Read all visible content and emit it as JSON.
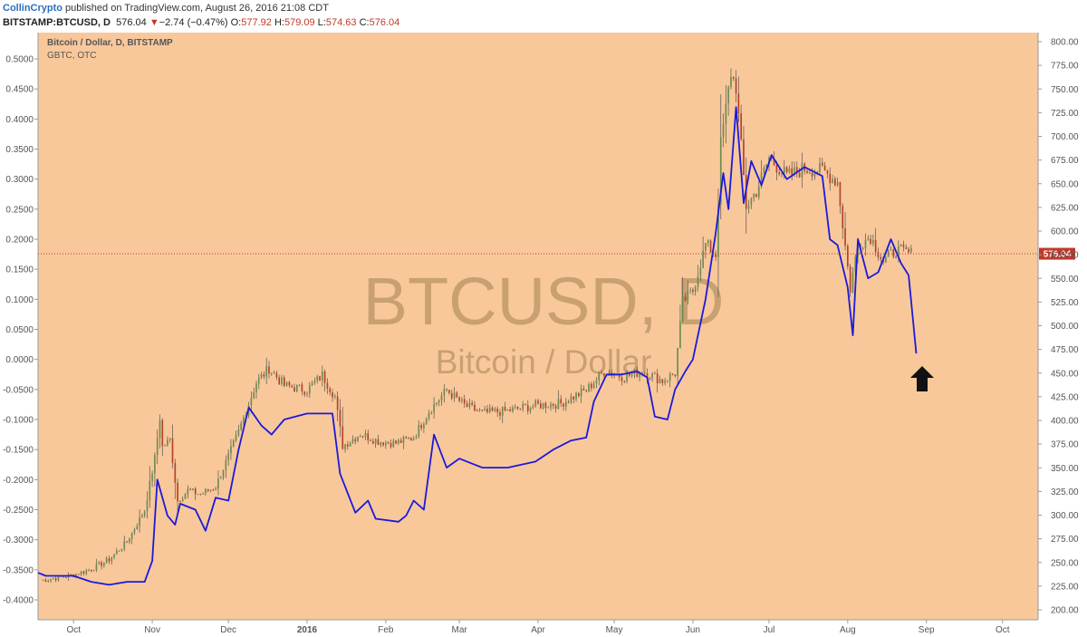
{
  "header": {
    "author": "CollinCrypto",
    "published": " published on TradingView.com, August 26, 2016 21:08 CDT",
    "symbol": "BITSTAMP:BTCUSD, D",
    "last": "576.04",
    "down_arrow": "▼",
    "change": "−2.74 (−0.47%)",
    "o_label": "O:",
    "o": "577.92",
    "h_label": "H:",
    "h": "579.09",
    "l_label": "L:",
    "l": "574.63",
    "c_label": "C:",
    "c": "576.04"
  },
  "chart_data": {
    "type": "line",
    "title": "Bitcoin / Dollar, D, BITSTAMP",
    "subtitle": "GBTC, OTC",
    "watermark_main": "BTCUSD, D",
    "watermark_sub": "Bitcoin / Dollar",
    "xlabel": "",
    "ylabel": "",
    "x_ticks": [
      "Oct",
      "Nov",
      "Dec",
      "2016",
      "Feb",
      "Mar",
      "Apr",
      "May",
      "Jun",
      "Jul",
      "Aug",
      "Sep",
      "Oct"
    ],
    "x_tick_dates": [
      "2015-10-01",
      "2015-11-01",
      "2015-12-01",
      "2016-01-01",
      "2016-02-01",
      "2016-03-01",
      "2016-04-01",
      "2016-05-01",
      "2016-06-01",
      "2016-07-01",
      "2016-08-01",
      "2016-09-01",
      "2016-10-01"
    ],
    "x_range": [
      "2015-09-17",
      "2016-10-15"
    ],
    "right_axis": {
      "min": 200,
      "max": 800,
      "step": 25,
      "ticks": [
        "800.00",
        "775.00",
        "750.00",
        "725.00",
        "700.00",
        "675.00",
        "650.00",
        "625.00",
        "600.00",
        "575.00",
        "550.00",
        "525.00",
        "500.00",
        "475.00",
        "450.00",
        "425.00",
        "400.00",
        "375.00",
        "350.00",
        "325.00",
        "300.00",
        "275.00",
        "250.00",
        "225.00",
        "200.00"
      ]
    },
    "left_axis": {
      "min": -0.4,
      "max": 0.5,
      "step": 0.05,
      "ticks": [
        "0.5000",
        "0.4500",
        "0.4000",
        "0.3500",
        "0.3000",
        "0.2500",
        "0.2000",
        "0.1500",
        "0.1000",
        "0.0500",
        "0.0000",
        "-0.0500",
        "-0.1000",
        "-0.1500",
        "-0.2000",
        "-0.2500",
        "-0.3000",
        "-0.3500",
        "-0.4000"
      ]
    },
    "last_price": 576.04,
    "last_price_label": "576.04",
    "grid": false,
    "colors": {
      "plot_bg": "#f8c89b",
      "up": "#6b8e4e",
      "down": "#b5432a",
      "wick": "#555555",
      "gbtc_line": "#1a1adb",
      "price_line": "#c0392b",
      "axis_text": "#555555",
      "watermark": "#c9a171"
    },
    "series": [
      {
        "name": "BTCUSD",
        "axis": "right",
        "kind": "daily close (candles)",
        "points": [
          [
            "2015-09-18",
            231
          ],
          [
            "2015-09-25",
            234
          ],
          [
            "2015-10-01",
            237
          ],
          [
            "2015-10-08",
            243
          ],
          [
            "2015-10-15",
            253
          ],
          [
            "2015-10-22",
            272
          ],
          [
            "2015-10-29",
            305
          ],
          [
            "2015-11-02",
            360
          ],
          [
            "2015-11-04",
            403
          ],
          [
            "2015-11-05",
            372
          ],
          [
            "2015-11-08",
            380
          ],
          [
            "2015-11-11",
            315
          ],
          [
            "2015-11-15",
            326
          ],
          [
            "2015-11-20",
            322
          ],
          [
            "2015-11-26",
            330
          ],
          [
            "2015-12-01",
            362
          ],
          [
            "2015-12-05",
            388
          ],
          [
            "2015-12-09",
            418
          ],
          [
            "2015-12-12",
            440
          ],
          [
            "2015-12-17",
            455
          ],
          [
            "2015-12-23",
            437
          ],
          [
            "2016-01-01",
            432
          ],
          [
            "2016-01-07",
            448
          ],
          [
            "2016-01-12",
            425
          ],
          [
            "2016-01-15",
            373
          ],
          [
            "2016-01-22",
            386
          ],
          [
            "2016-01-29",
            378
          ],
          [
            "2016-02-05",
            376
          ],
          [
            "2016-02-12",
            382
          ],
          [
            "2016-02-18",
            410
          ],
          [
            "2016-02-25",
            432
          ],
          [
            "2016-03-03",
            416
          ],
          [
            "2016-03-10",
            408
          ],
          [
            "2016-03-20",
            410
          ],
          [
            "2016-03-31",
            416
          ],
          [
            "2016-04-10",
            418
          ],
          [
            "2016-04-20",
            432
          ],
          [
            "2016-04-27",
            452
          ],
          [
            "2016-05-05",
            446
          ],
          [
            "2016-05-12",
            452
          ],
          [
            "2016-05-20",
            442
          ],
          [
            "2016-05-25",
            450
          ],
          [
            "2016-05-28",
            525
          ],
          [
            "2016-06-01",
            537
          ],
          [
            "2016-06-06",
            586
          ],
          [
            "2016-06-10",
            575
          ],
          [
            "2016-06-12",
            692
          ],
          [
            "2016-06-16",
            767
          ],
          [
            "2016-06-18",
            752
          ],
          [
            "2016-06-22",
            626
          ],
          [
            "2016-06-26",
            642
          ],
          [
            "2016-07-01",
            677
          ],
          [
            "2016-07-08",
            658
          ],
          [
            "2016-07-15",
            666
          ],
          [
            "2016-07-22",
            664
          ],
          [
            "2016-07-28",
            652
          ],
          [
            "2016-08-02",
            539
          ],
          [
            "2016-08-05",
            586
          ],
          [
            "2016-08-10",
            594
          ],
          [
            "2016-08-15",
            568
          ],
          [
            "2016-08-20",
            580
          ],
          [
            "2016-08-26",
            576
          ]
        ]
      },
      {
        "name": "GBTC",
        "axis": "left",
        "kind": "line",
        "points": [
          [
            "2015-09-17",
            -0.355
          ],
          [
            "2015-09-20",
            -0.36
          ],
          [
            "2015-10-01",
            -0.36
          ],
          [
            "2015-10-08",
            -0.37
          ],
          [
            "2015-10-15",
            -0.375
          ],
          [
            "2015-10-22",
            -0.37
          ],
          [
            "2015-10-29",
            -0.37
          ],
          [
            "2015-11-01",
            -0.335
          ],
          [
            "2015-11-03",
            -0.2
          ],
          [
            "2015-11-07",
            -0.26
          ],
          [
            "2015-11-10",
            -0.275
          ],
          [
            "2015-11-12",
            -0.24
          ],
          [
            "2015-11-18",
            -0.25
          ],
          [
            "2015-11-22",
            -0.285
          ],
          [
            "2015-11-26",
            -0.23
          ],
          [
            "2015-12-01",
            -0.235
          ],
          [
            "2015-12-05",
            -0.15
          ],
          [
            "2015-12-09",
            -0.08
          ],
          [
            "2015-12-14",
            -0.11
          ],
          [
            "2015-12-18",
            -0.125
          ],
          [
            "2015-12-23",
            -0.1
          ],
          [
            "2016-01-01",
            -0.09
          ],
          [
            "2016-01-11",
            -0.09
          ],
          [
            "2016-01-14",
            -0.19
          ],
          [
            "2016-01-20",
            -0.255
          ],
          [
            "2016-01-25",
            -0.235
          ],
          [
            "2016-01-28",
            -0.265
          ],
          [
            "2016-02-06",
            -0.27
          ],
          [
            "2016-02-09",
            -0.26
          ],
          [
            "2016-02-12",
            -0.235
          ],
          [
            "2016-02-16",
            -0.25
          ],
          [
            "2016-02-20",
            -0.125
          ],
          [
            "2016-02-25",
            -0.18
          ],
          [
            "2016-03-01",
            -0.165
          ],
          [
            "2016-03-10",
            -0.18
          ],
          [
            "2016-03-20",
            -0.18
          ],
          [
            "2016-03-31",
            -0.17
          ],
          [
            "2016-04-07",
            -0.15
          ],
          [
            "2016-04-14",
            -0.135
          ],
          [
            "2016-04-20",
            -0.13
          ],
          [
            "2016-04-23",
            -0.07
          ],
          [
            "2016-04-28",
            -0.025
          ],
          [
            "2016-05-04",
            -0.025
          ],
          [
            "2016-05-10",
            -0.02
          ],
          [
            "2016-05-14",
            -0.03
          ],
          [
            "2016-05-17",
            -0.095
          ],
          [
            "2016-05-22",
            -0.1
          ],
          [
            "2016-05-25",
            -0.05
          ],
          [
            "2016-05-29",
            -0.02
          ],
          [
            "2016-06-01",
            0.0
          ],
          [
            "2016-06-06",
            0.1
          ],
          [
            "2016-06-10",
            0.21
          ],
          [
            "2016-06-13",
            0.31
          ],
          [
            "2016-06-15",
            0.25
          ],
          [
            "2016-06-18",
            0.42
          ],
          [
            "2016-06-21",
            0.26
          ],
          [
            "2016-06-24",
            0.33
          ],
          [
            "2016-06-28",
            0.29
          ],
          [
            "2016-07-02",
            0.34
          ],
          [
            "2016-07-08",
            0.3
          ],
          [
            "2016-07-15",
            0.32
          ],
          [
            "2016-07-22",
            0.305
          ],
          [
            "2016-07-25",
            0.2
          ],
          [
            "2016-07-28",
            0.19
          ],
          [
            "2016-08-01",
            0.12
          ],
          [
            "2016-08-03",
            0.04
          ],
          [
            "2016-08-05",
            0.2
          ],
          [
            "2016-08-09",
            0.135
          ],
          [
            "2016-08-13",
            0.145
          ],
          [
            "2016-08-18",
            0.2
          ],
          [
            "2016-08-22",
            0.16
          ],
          [
            "2016-08-25",
            0.14
          ],
          [
            "2016-08-28",
            0.01
          ]
        ]
      }
    ]
  }
}
